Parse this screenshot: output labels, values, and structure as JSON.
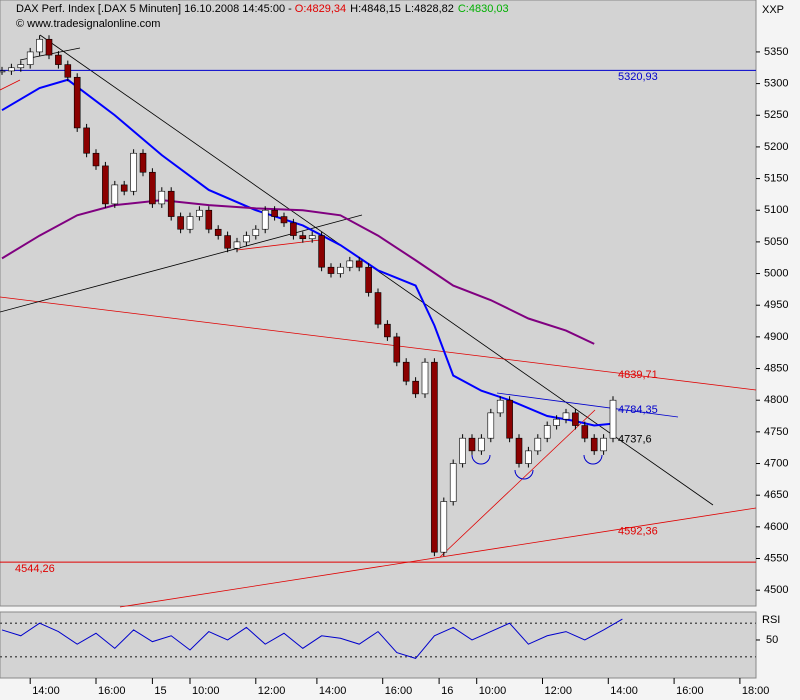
{
  "chart_data": {
    "type": "candlestick",
    "title": "DAX Perf. Index [.DAX  5 Minuten] 16.10.2008 14:45:00 -",
    "ohlc_labels": [
      {
        "text": "O:4829,34",
        "color": "#e00000"
      },
      {
        "text": "H:4848,15",
        "color": "#000000"
      },
      {
        "text": "L:4828,82",
        "color": "#000000"
      },
      {
        "text": "C:4830,03",
        "color": "#00b000"
      }
    ],
    "source": "© www.tradesignalonline.com",
    "symbol": "XXP",
    "x": [
      0,
      2,
      4,
      6,
      8,
      10,
      12,
      14,
      16,
      18,
      20,
      22,
      24,
      26,
      28,
      30,
      32,
      34,
      36,
      38,
      40,
      42,
      44,
      46,
      48,
      50,
      52,
      54,
      56,
      58,
      60,
      62,
      64,
      66,
      68,
      70,
      72,
      74,
      76,
      78,
      80,
      82,
      84,
      86,
      88,
      90,
      92,
      94,
      96,
      98,
      100,
      102,
      104,
      106,
      108,
      110,
      112,
      114,
      116,
      118,
      120,
      122,
      124,
      126,
      128,
      130
    ],
    "close": [
      5320,
      5325,
      5330,
      5350,
      5370,
      5345,
      5330,
      5310,
      5230,
      5190,
      5170,
      5110,
      5140,
      5130,
      5190,
      5160,
      5110,
      5130,
      5090,
      5070,
      5090,
      5100,
      5070,
      5060,
      5040,
      5050,
      5060,
      5070,
      5100,
      5090,
      5080,
      5060,
      5055,
      5060,
      5010,
      5000,
      5010,
      5020,
      5010,
      4970,
      4920,
      4900,
      4860,
      4830,
      4810,
      4860,
      4560,
      4640,
      4700,
      4740,
      4720,
      4740,
      4780,
      4800,
      4740,
      4700,
      4720,
      4740,
      4760,
      4770,
      4780,
      4760,
      4740,
      4720,
      4740,
      4800
    ],
    "up_color": "#ffffff",
    "down_color": "#8b0000",
    "series": [
      {
        "color": "#0000ff",
        "x": [
          0,
          8,
          14,
          24,
          34,
          44,
          54,
          64,
          72,
          80,
          88,
          92,
          96,
          102,
          108,
          116,
          122,
          126,
          130
        ],
        "values": [
          5258,
          5293,
          5306,
          5250,
          5187,
          5132,
          5100,
          5076,
          5045,
          5005,
          4981,
          4918,
          4839,
          4815,
          4800,
          4775,
          4767,
          4760,
          4763
        ]
      },
      {
        "color": "#800080",
        "x": [
          0,
          8,
          16,
          24,
          34,
          44,
          54,
          64,
          72,
          80,
          88,
          96,
          104,
          112,
          120,
          126
        ],
        "values": [
          5024,
          5060,
          5092,
          5108,
          5116,
          5108,
          5103,
          5100,
          5092,
          5060,
          5021,
          4981,
          4958,
          4929,
          4910,
          4889
        ]
      }
    ],
    "annotations": [
      {
        "value": 5320.93,
        "label": "5320,93",
        "color": "#0000cc",
        "line": true
      },
      {
        "value": 4544.26,
        "label": "4544,26",
        "color": "#e00000",
        "line": true
      },
      {
        "value": 4839.71,
        "label": "4839,71",
        "color": "#e00000",
        "line": false
      },
      {
        "value": 4784.35,
        "label": "4784,35",
        "color": "#0000cc",
        "line": false
      },
      {
        "value": 4737.6,
        "label": "4737,6",
        "color": "#000000",
        "line": false
      },
      {
        "value": 4592.36,
        "label": "4592,36",
        "color": "#e00000",
        "line": false
      }
    ],
    "ylim": [
      4475,
      5432
    ],
    "yticks": [
      4500,
      4550,
      4600,
      4650,
      4700,
      4750,
      4800,
      4850,
      4900,
      4950,
      5000,
      5050,
      5100,
      5150,
      5200,
      5250,
      5300,
      5350
    ],
    "xlim": [
      0,
      160
    ],
    "xticks": [
      {
        "value": 6,
        "label": "14:00"
      },
      {
        "value": 20,
        "label": "16:00"
      },
      {
        "value": 32,
        "label": "15"
      },
      {
        "value": 40,
        "label": "10:00"
      },
      {
        "value": 54,
        "label": "12:00"
      },
      {
        "value": 67,
        "label": "14:00"
      },
      {
        "value": 81,
        "label": "16:00"
      },
      {
        "value": 93,
        "label": "16"
      },
      {
        "value": 101,
        "label": "10:00"
      },
      {
        "value": 115,
        "label": "12:00"
      },
      {
        "value": 129,
        "label": "14:00"
      },
      {
        "value": 143,
        "label": "16:00"
      },
      {
        "value": 157,
        "label": "18:00"
      }
    ],
    "rsi": {
      "name": "RSI",
      "color": "#0000cc",
      "x": [
        0,
        4,
        8,
        12,
        16,
        20,
        24,
        28,
        32,
        36,
        40,
        44,
        48,
        52,
        56,
        60,
        64,
        68,
        72,
        76,
        80,
        84,
        88,
        92,
        96,
        100,
        104,
        108,
        112,
        116,
        120,
        124,
        128,
        132
      ],
      "values": [
        62,
        55,
        70,
        60,
        45,
        58,
        40,
        62,
        48,
        55,
        38,
        60,
        50,
        65,
        45,
        58,
        40,
        55,
        52,
        45,
        60,
        35,
        28,
        55,
        65,
        50,
        60,
        70,
        45,
        55,
        60,
        50,
        62,
        75
      ],
      "ylim": [
        7,
        81
      ],
      "yticks": [
        50
      ],
      "bands": [
        30,
        70
      ]
    }
  }
}
